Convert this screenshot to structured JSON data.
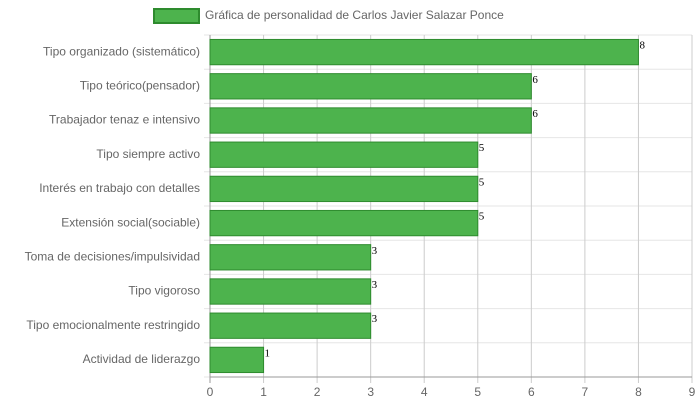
{
  "chart_data": {
    "type": "bar",
    "orientation": "horizontal",
    "legend": "top",
    "grid": true,
    "categories": [
      "Tipo organizado (sistemático)",
      "Tipo teórico(pensador)",
      "Trabajador tenaz e intensivo",
      "Tipo siempre activo",
      "Interés en trabajo con detalles",
      "Extensión social(sociable)",
      "Toma de decisiones/impulsividad",
      "Tipo vigoroso",
      "Tipo emocionalmente restringido",
      "Actividad de liderazgo"
    ],
    "series": [
      {
        "name": "Gráfica de personalidad de Carlos Javier Salazar Ponce",
        "color": "#4db34d",
        "border": "#2e8b2e",
        "values": [
          8,
          6,
          6,
          5,
          5,
          5,
          3,
          3,
          3,
          1
        ]
      }
    ],
    "xlim": [
      0,
      9
    ],
    "xticks": [
      0,
      1,
      2,
      3,
      4,
      5,
      6,
      7,
      8,
      9
    ]
  }
}
